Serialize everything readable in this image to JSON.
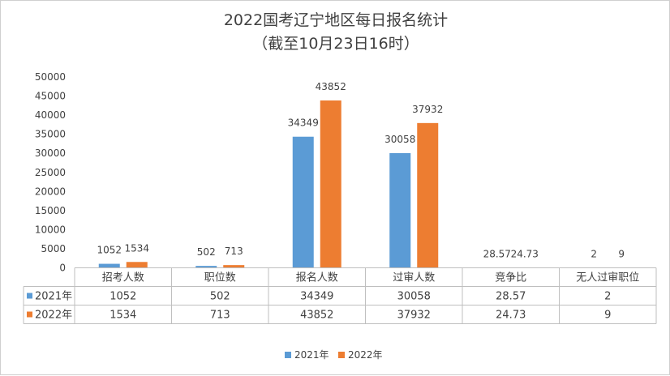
{
  "chart_data": {
    "type": "bar",
    "title": "2022国考辽宁地区每日报名统计",
    "subtitle": "（截至10月23日16时）",
    "categories": [
      "招考人数",
      "职位数",
      "报名人数",
      "过审人数",
      "竞争比",
      "无人过审职位"
    ],
    "series": [
      {
        "name": "2021年",
        "color": "#5b9bd5",
        "values": [
          1052,
          502,
          34349,
          30058,
          28.57,
          2
        ],
        "labels": [
          "1052",
          "502",
          "34349",
          "30058",
          "28.57",
          "2"
        ]
      },
      {
        "name": "2022年",
        "color": "#ed7d31",
        "values": [
          1534,
          713,
          43852,
          37932,
          24.73,
          9
        ],
        "labels": [
          "1534",
          "713",
          "43852",
          "37932",
          "24.73",
          "9"
        ]
      }
    ],
    "ylim": [
      0,
      50000
    ],
    "yticks": [
      "0",
      "5000",
      "10000",
      "15000",
      "20000",
      "25000",
      "30000",
      "35000",
      "40000",
      "45000",
      "50000"
    ],
    "grid": false,
    "legend_position": "bottom",
    "data_table": true
  }
}
